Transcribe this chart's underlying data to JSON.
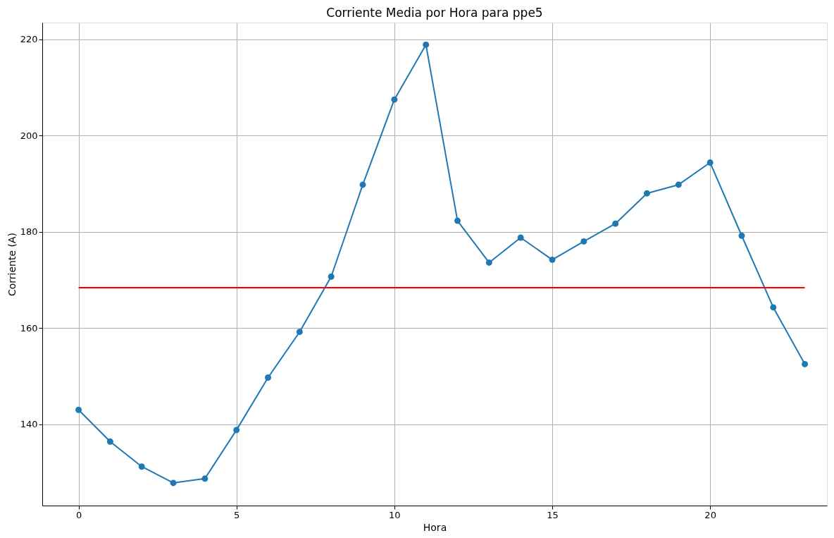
{
  "chart_data": {
    "type": "line",
    "title": "Corriente Media por Hora para ppe5",
    "xlabel": "Hora",
    "ylabel": "Corriente (A)",
    "x": [
      0,
      1,
      2,
      3,
      4,
      5,
      6,
      7,
      8,
      9,
      10,
      11,
      12,
      13,
      14,
      15,
      16,
      17,
      18,
      19,
      20,
      21,
      22,
      23
    ],
    "series": [
      {
        "color": "#1f77b4",
        "marker": "circle",
        "values": [
          143.0,
          136.4,
          131.2,
          127.8,
          128.7,
          138.8,
          149.7,
          159.2,
          170.7,
          189.8,
          207.5,
          218.9,
          182.3,
          173.6,
          178.8,
          174.2,
          178.0,
          181.7,
          188.0,
          189.8,
          194.4,
          179.2,
          164.3,
          152.5
        ]
      },
      {
        "type": "line",
        "color": "#ff0000",
        "marker": "none",
        "x": [
          0,
          23
        ],
        "values": [
          168.4,
          168.4
        ]
      }
    ],
    "xlim": [
      -1.15,
      23.7
    ],
    "ylim": [
      123.1,
      223.5
    ],
    "xticks": [
      0,
      5,
      10,
      15,
      20
    ],
    "yticks": [
      140,
      160,
      180,
      200,
      220
    ],
    "grid": true
  }
}
